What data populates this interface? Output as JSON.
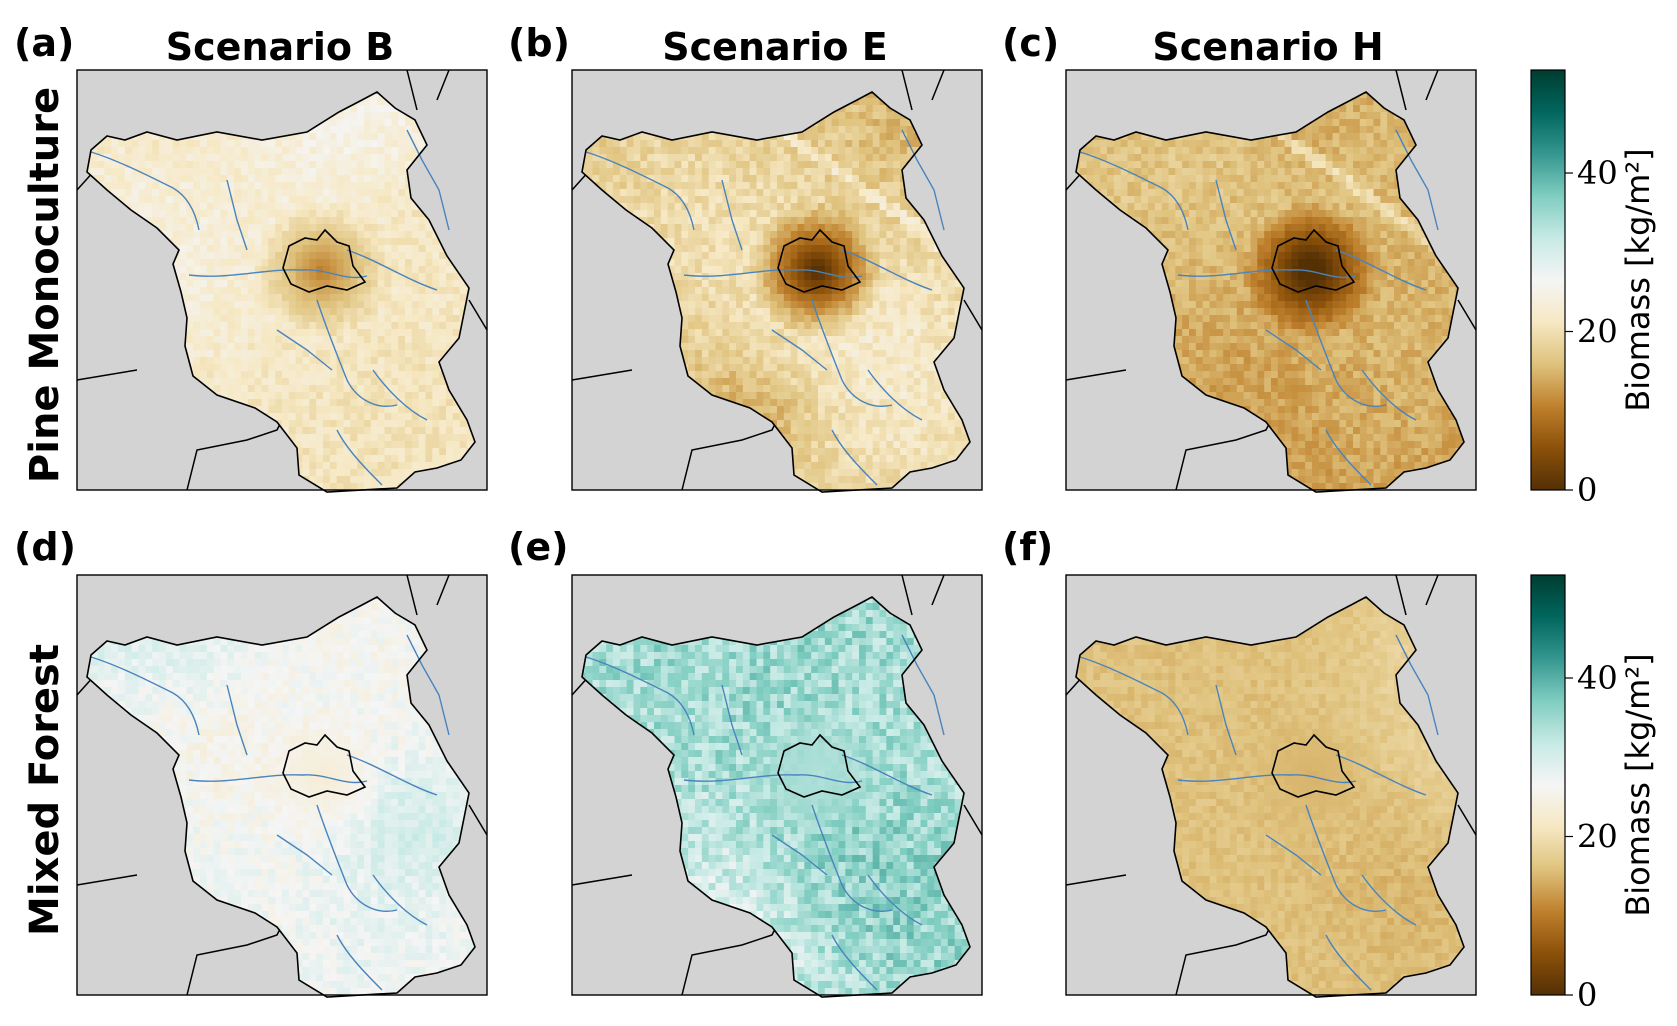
{
  "columns": [
    "Scenario B",
    "Scenario E",
    "Scenario H"
  ],
  "rows": [
    "Pine Monoculture",
    "Mixed Forest"
  ],
  "panels": [
    {
      "label": "(a)",
      "row": 0,
      "col": 0,
      "mean_biomass": 21,
      "variation": 2.5,
      "city_low": 13,
      "streak": 0
    },
    {
      "label": "(b)",
      "row": 0,
      "col": 1,
      "mean_biomass": 17,
      "variation": 3,
      "city_low": 4,
      "streak": 1
    },
    {
      "label": "(c)",
      "row": 0,
      "col": 2,
      "mean_biomass": 13,
      "variation": 2.5,
      "city_low": 1,
      "streak": 1
    },
    {
      "label": "(d)",
      "row": 1,
      "col": 0,
      "mean_biomass": 26,
      "variation": 2.5,
      "city_low": 24,
      "streak": 0
    },
    {
      "label": "(e)",
      "row": 1,
      "col": 1,
      "mean_biomass": 35,
      "variation": 5,
      "city_low": 34,
      "streak": 0
    },
    {
      "label": "(f)",
      "row": 1,
      "col": 2,
      "mean_biomass": 16,
      "variation": 1.5,
      "city_low": 15,
      "streak": 0
    }
  ],
  "colorbar": {
    "label": "Biomass [kg/m²]",
    "min": 0,
    "max": 53,
    "ticks": [
      "0",
      "20",
      "40"
    ],
    "tick_values": [
      0,
      20,
      40
    ],
    "colormap": "BrBG",
    "colors": [
      "#543005",
      "#8c510a",
      "#bf812d",
      "#dfc27d",
      "#f6e8c3",
      "#f5f5f5",
      "#c7eae5",
      "#80cdc1",
      "#35978f",
      "#01665e",
      "#003c30"
    ]
  },
  "colors": {
    "background_land": "#d3d3d3",
    "rivers": "#4a84bd",
    "borders": "#000000"
  }
}
